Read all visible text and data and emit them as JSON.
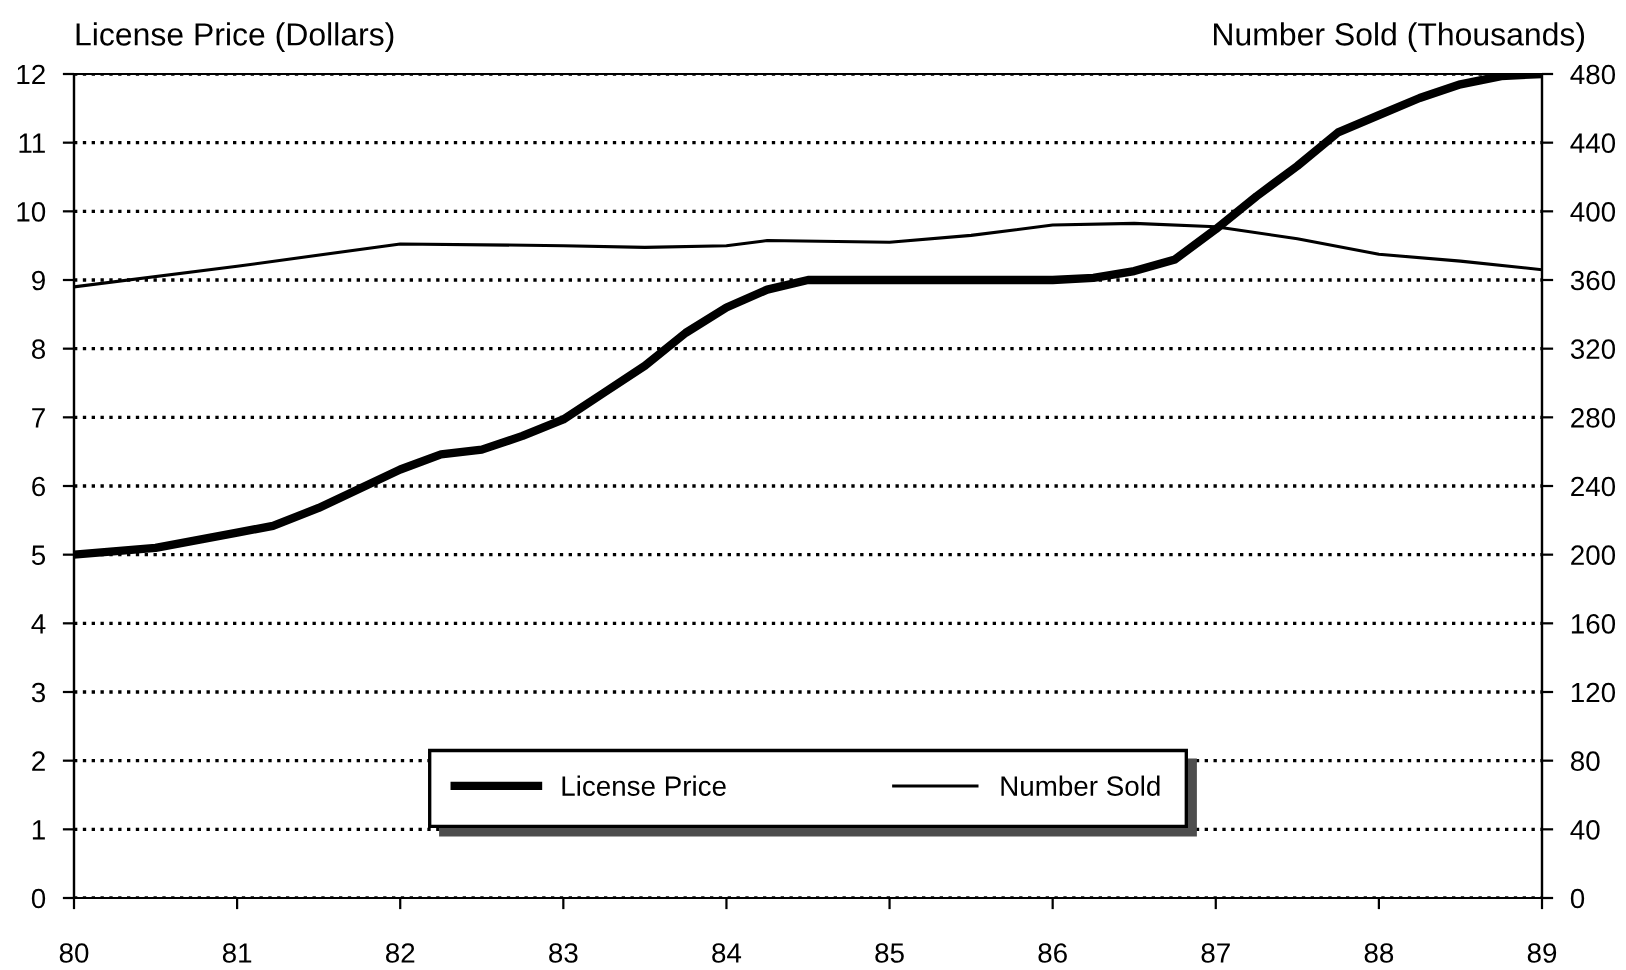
{
  "chart_data": {
    "type": "line",
    "ylabel": "License Price (Dollars)",
    "y2label": "Number Sold (Thousands)",
    "xlim": [
      80,
      89
    ],
    "xticks": [
      80,
      81,
      82,
      83,
      84,
      85,
      86,
      87,
      88,
      89
    ],
    "ylim": [
      0,
      12
    ],
    "yticks": [
      0,
      1,
      2,
      3,
      4,
      5,
      6,
      7,
      8,
      9,
      10,
      11,
      12
    ],
    "y2lim": [
      0,
      480
    ],
    "y2ticks": [
      0,
      40,
      80,
      120,
      160,
      200,
      240,
      280,
      320,
      360,
      400,
      440,
      480
    ],
    "grid": "y",
    "legend": "bottom",
    "marker": "none",
    "series": [
      {
        "name": "License Price",
        "color": "#000000",
        "x": [
          80,
          80.5,
          81,
          81.22,
          81.5,
          82,
          82.25,
          82.5,
          82.75,
          83,
          83.25,
          83.5,
          83.75,
          84,
          84.25,
          84.5,
          85,
          86,
          86.25,
          86.5,
          86.75,
          87,
          87.25,
          87.5,
          87.75,
          88,
          88.25,
          88.5,
          88.75,
          89
        ],
        "values": [
          5.0,
          5.1,
          5.32,
          5.42,
          5.68,
          6.24,
          6.46,
          6.53,
          6.73,
          6.97,
          7.36,
          7.75,
          8.23,
          8.6,
          8.86,
          9.0,
          9.0,
          9.0,
          9.03,
          9.13,
          9.3,
          9.74,
          10.22,
          10.66,
          11.15,
          11.4,
          11.65,
          11.85,
          11.97,
          12.0
        ]
      },
      {
        "name": "Number Sold",
        "color": "#000000",
        "axis": "y2",
        "x": [
          80,
          81,
          82,
          83,
          83.5,
          84,
          84.25,
          85,
          85.5,
          86,
          86.5,
          87,
          87.5,
          88,
          88.5,
          89
        ],
        "values": [
          356,
          368,
          381,
          380,
          379,
          380,
          383,
          382,
          386,
          392,
          393,
          391,
          384,
          375,
          371,
          366
        ]
      }
    ]
  }
}
